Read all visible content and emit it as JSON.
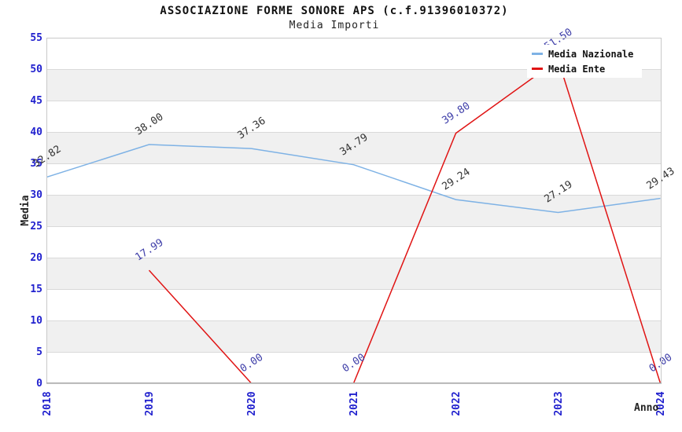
{
  "header": {
    "title": "ASSOCIAZIONE FORME SONORE APS (c.f.91396010372)",
    "subtitle": "Media Importi"
  },
  "axes": {
    "ylabel": "Media",
    "xlabel": "Anno",
    "yticks": [
      "0",
      "5",
      "10",
      "15",
      "20",
      "25",
      "30",
      "35",
      "40",
      "45",
      "50",
      "55"
    ],
    "xticks": [
      "2018",
      "2019",
      "2020",
      "2021",
      "2022",
      "2023",
      "2024"
    ],
    "tick_color": "#2121ce"
  },
  "legend": {
    "items": [
      {
        "label": "Media Nazionale",
        "color": "#7eb2e5"
      },
      {
        "label": "Media Ente",
        "color": "#e01414"
      }
    ]
  },
  "chart_data": {
    "type": "line",
    "title": "ASSOCIAZIONE FORME SONORE APS (c.f.91396010372)",
    "subtitle": "Media Importi",
    "xlabel": "Anno",
    "ylabel": "Media",
    "categories": [
      2018,
      2019,
      2020,
      2021,
      2022,
      2023,
      2024
    ],
    "ylim": [
      0,
      55
    ],
    "ytick_step": 5,
    "grid": "horizontal-bands",
    "legend_position": "top-right",
    "series": [
      {
        "name": "Media Nazionale",
        "color": "#7eb2e5",
        "label_color": "#333333",
        "values": [
          32.82,
          38.0,
          37.36,
          34.79,
          29.24,
          27.19,
          29.43
        ],
        "labels": [
          "32.82",
          "38.00",
          "37.36",
          "34.79",
          "29.24",
          "27.19",
          "29.43"
        ]
      },
      {
        "name": "Media Ente",
        "color": "#e01414",
        "label_color": "#3d3da8",
        "values": [
          null,
          17.99,
          0.0,
          0.0,
          39.8,
          51.5,
          0.0
        ],
        "labels": [
          null,
          "17.99",
          "0.00",
          "0.00",
          "39.80",
          "51.50",
          "0.00"
        ],
        "note": "2018 has no value; 2023 peak and its label are hidden behind the legend box (value estimated ~51.5, label clipped at plot top)"
      }
    ],
    "colors": {
      "band_gray": "#f0f0f0",
      "gridline": "#d9d9d9",
      "plot_border": "#c9c9c9",
      "x_axis_line": "#a9a9a9",
      "tick_text": "#2121ce"
    }
  }
}
